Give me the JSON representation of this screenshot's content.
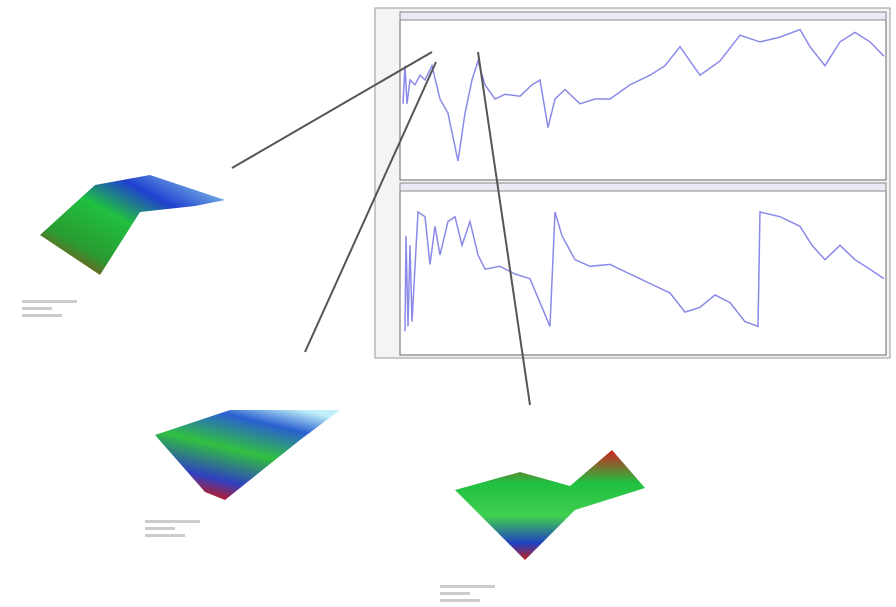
{
  "chart_data": [
    {
      "type": "line",
      "color": "#8a8ae8",
      "xlim": [
        0,
        486
      ],
      "ylim": [
        0,
        168
      ],
      "x": [
        3,
        5,
        7,
        10,
        15,
        20,
        25,
        32,
        40,
        48,
        58,
        65,
        72,
        78,
        85,
        95,
        105,
        120,
        132,
        140,
        148,
        155,
        165,
        180,
        195,
        210,
        230,
        250,
        265,
        280,
        290,
        300,
        320,
        340,
        360,
        380,
        400,
        410,
        425,
        440,
        455,
        470,
        484
      ],
      "values": [
        80,
        120,
        80,
        105,
        100,
        110,
        105,
        120,
        85,
        70,
        20,
        70,
        105,
        125,
        100,
        85,
        90,
        88,
        100,
        105,
        55,
        85,
        95,
        80,
        85,
        85,
        100,
        110,
        120,
        140,
        125,
        110,
        125,
        152,
        145,
        150,
        158,
        140,
        120,
        145,
        155,
        145,
        130
      ]
    },
    {
      "type": "line",
      "color": "#8a8ae8",
      "xlim": [
        0,
        486
      ],
      "ylim": [
        0,
        172
      ],
      "x": [
        5,
        6,
        8,
        10,
        12,
        18,
        25,
        30,
        35,
        40,
        48,
        55,
        62,
        70,
        78,
        85,
        100,
        115,
        130,
        140,
        150,
        155,
        162,
        175,
        190,
        210,
        230,
        250,
        270,
        285,
        300,
        315,
        330,
        345,
        358,
        360,
        380,
        400,
        412,
        425,
        440,
        455,
        470,
        484
      ],
      "values": [
        25,
        125,
        30,
        115,
        35,
        150,
        145,
        95,
        135,
        105,
        140,
        145,
        115,
        140,
        105,
        90,
        93,
        85,
        80,
        55,
        30,
        150,
        125,
        100,
        93,
        95,
        85,
        75,
        65,
        45,
        50,
        63,
        55,
        35,
        30,
        150,
        145,
        135,
        115,
        100,
        115,
        100,
        90,
        80
      ]
    }
  ]
}
